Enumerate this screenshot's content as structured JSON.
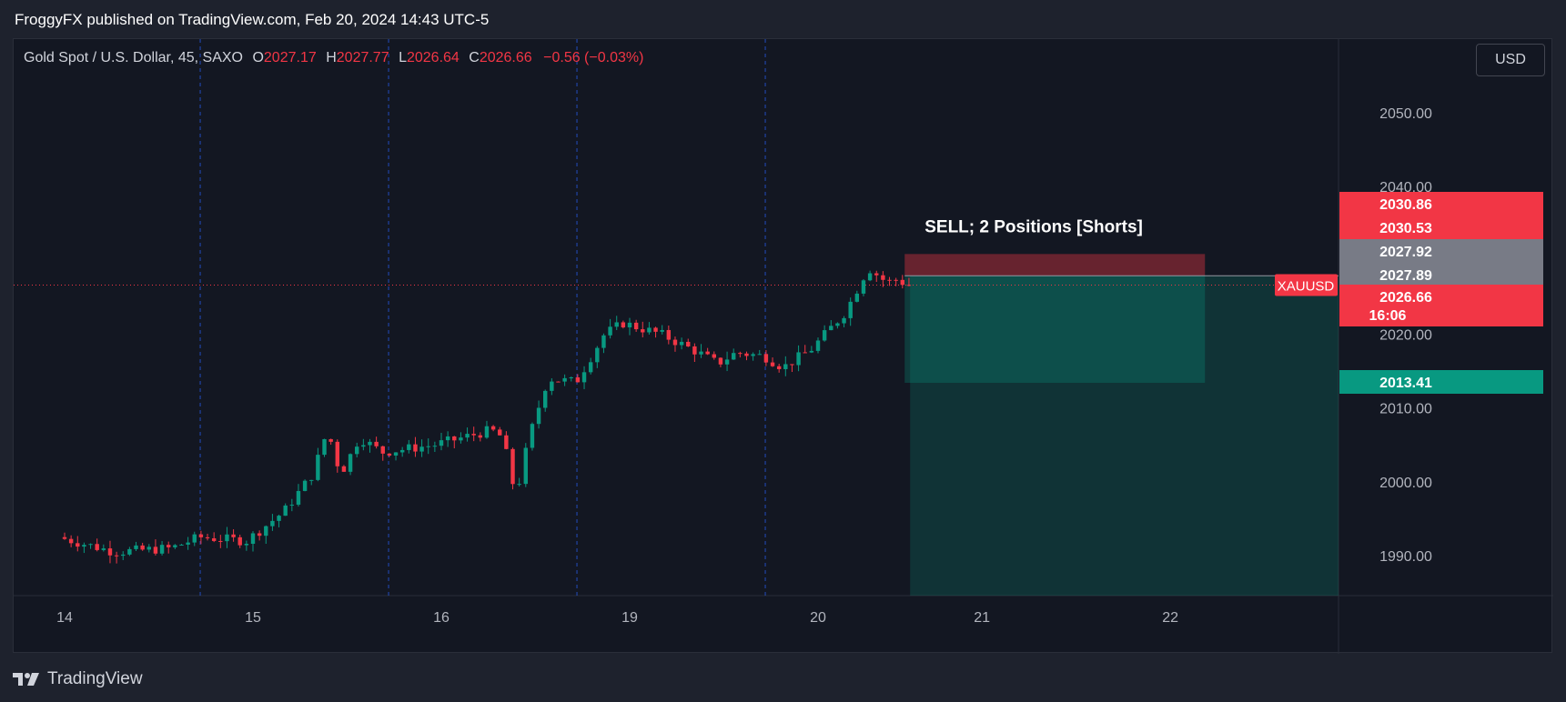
{
  "header": {
    "published_text": "FroggyFX published on TradingView.com, Feb 20, 2024 14:43 UTC-5"
  },
  "legend": {
    "instrument": "Gold Spot / U.S. Dollar, 45, SAXO",
    "open_label": "O",
    "open_value": "2027.17",
    "high_label": "H",
    "high_value": "2027.77",
    "low_label": "L",
    "low_value": "2026.64",
    "close_label": "C",
    "close_value": "2026.66",
    "change": "−0.56 (−0.03%)"
  },
  "currency_button": {
    "label": "USD"
  },
  "footer": {
    "brand": "TradingView"
  },
  "colors": {
    "up": "#089981",
    "down": "#f23645",
    "background": "#131722",
    "grid": "#363a45",
    "text": "#b2b5be",
    "session_line": "#2962ff"
  },
  "chart_data": {
    "type": "candlestick",
    "symbol": "XAUUSD",
    "interval": "45",
    "ylim": [
      1987,
      2058
    ],
    "y_ticks": [
      1990,
      2000,
      2010,
      2020,
      2040,
      2050
    ],
    "y_tick_labels": [
      "1990.00",
      "2000.00",
      "2010.00",
      "2020.00",
      "2040.00",
      "2050.00"
    ],
    "x_ticks": [
      {
        "label": "14",
        "day": 0
      },
      {
        "label": "15",
        "day": 1
      },
      {
        "label": "16",
        "day": 2
      },
      {
        "label": "19",
        "day": 3
      },
      {
        "label": "20",
        "day": 4
      },
      {
        "label": "21",
        "day": 4.87
      },
      {
        "label": "22",
        "day": 5.87
      }
    ],
    "session_breaks": [
      0.72,
      1.72,
      2.72,
      3.72
    ],
    "candles_per_day": 29,
    "anchors": [
      {
        "day": 0.0,
        "price": 1992.5
      },
      {
        "day": 0.3,
        "price": 1990.5
      },
      {
        "day": 0.6,
        "price": 1991.0
      },
      {
        "day": 0.75,
        "price": 1992.5
      },
      {
        "day": 1.0,
        "price": 1992.0
      },
      {
        "day": 1.2,
        "price": 1996.0
      },
      {
        "day": 1.35,
        "price": 2001.0
      },
      {
        "day": 1.43,
        "price": 2007.0
      },
      {
        "day": 1.5,
        "price": 2001.0
      },
      {
        "day": 1.6,
        "price": 2006.0
      },
      {
        "day": 1.72,
        "price": 2004.0
      },
      {
        "day": 2.0,
        "price": 2005.0
      },
      {
        "day": 2.3,
        "price": 2007.0
      },
      {
        "day": 2.36,
        "price": 2006.0
      },
      {
        "day": 2.43,
        "price": 1998.0
      },
      {
        "day": 2.5,
        "price": 2006.0
      },
      {
        "day": 2.6,
        "price": 2014.0
      },
      {
        "day": 2.75,
        "price": 2013.5
      },
      {
        "day": 2.9,
        "price": 2020.0
      },
      {
        "day": 3.0,
        "price": 2021.5
      },
      {
        "day": 3.2,
        "price": 2020.0
      },
      {
        "day": 3.4,
        "price": 2017.5
      },
      {
        "day": 3.5,
        "price": 2016.0
      },
      {
        "day": 3.6,
        "price": 2017.5
      },
      {
        "day": 3.75,
        "price": 2017.0
      },
      {
        "day": 3.85,
        "price": 2015.5
      },
      {
        "day": 4.0,
        "price": 2018.0
      },
      {
        "day": 4.18,
        "price": 2023.0
      },
      {
        "day": 4.3,
        "price": 2029.0
      },
      {
        "day": 4.4,
        "price": 2027.0
      },
      {
        "day": 4.46,
        "price": 2027.5
      },
      {
        "day": 4.5,
        "price": 2026.66
      }
    ],
    "price_lines": {
      "current": 2026.66
    },
    "position": {
      "label": "SELL; 2 Positions [Shorts]",
      "entry": 2027.92,
      "stop": 2030.86,
      "target": 2013.41,
      "start_day": 4.46,
      "end_day": 6.0
    },
    "axis_labels": [
      {
        "text": "2030.86",
        "price": 2030.86,
        "color": "#f23645"
      },
      {
        "text": "2030.53",
        "price": 2030.53,
        "color": "#f23645"
      },
      {
        "text": "2027.92",
        "price": 2027.92,
        "color": "#787b86"
      },
      {
        "text": "2027.89",
        "price": 2027.89,
        "color": "#787b86"
      },
      {
        "text": "2026.66",
        "sub": "16:06",
        "price": 2026.66,
        "color": "#f23645"
      },
      {
        "text": "2013.41",
        "price": 2013.41,
        "color": "#089981"
      }
    ],
    "symbol_tag": "XAUUSD"
  }
}
